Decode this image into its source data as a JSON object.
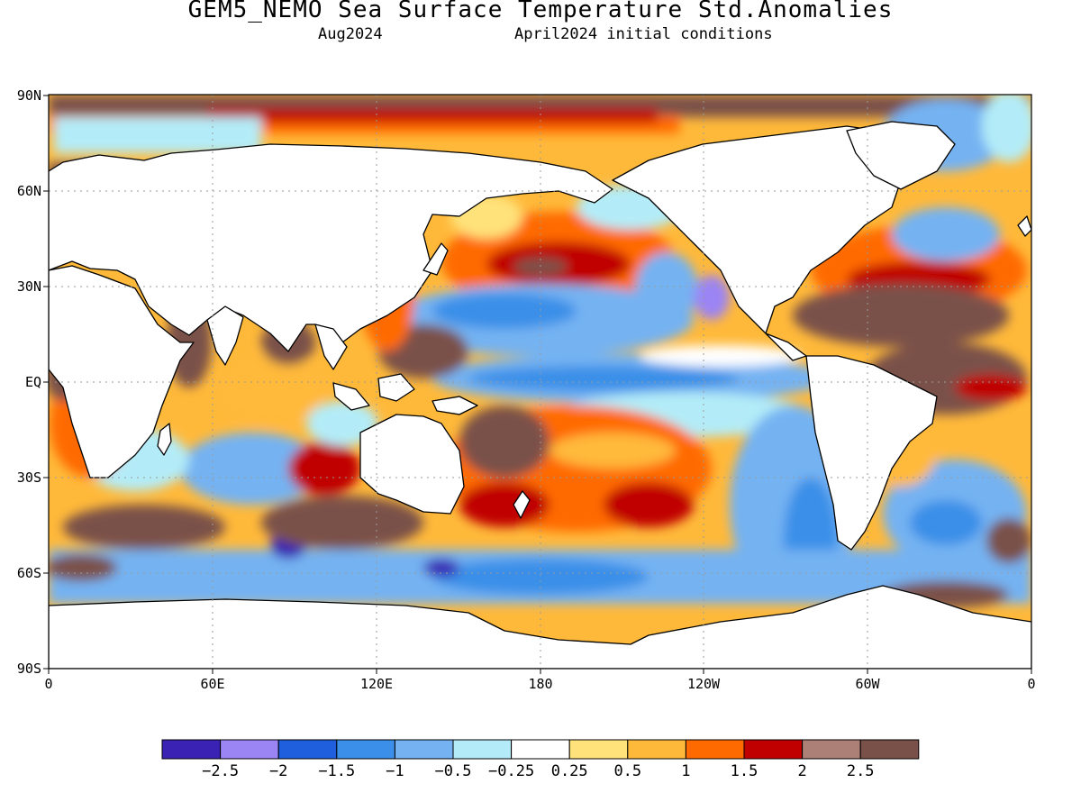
{
  "title": "GEM5_NEMO Sea Surface Temperature Std.Anomalies",
  "subtitle_left": "Aug2024",
  "subtitle_right": "April2024 initial conditions",
  "lat_labels": [
    "90N",
    "60N",
    "30N",
    "EQ",
    "30S",
    "60S",
    "90S"
  ],
  "lon_labels": [
    "0",
    "60E",
    "120E",
    "180",
    "120W",
    "60W",
    "0"
  ],
  "colorbar": {
    "colors": [
      "#3a22b4",
      "#9b84f4",
      "#1f5fdd",
      "#3b8fe8",
      "#74b2f2",
      "#b3ecf8",
      "#ffffff",
      "#ffe27a",
      "#ffb93a",
      "#ff6a00",
      "#c00000",
      "#ac7f77",
      "#7a5148"
    ],
    "labels": [
      "−2.5",
      "−2",
      "−1.5",
      "−1",
      "−0.5",
      "−0.25",
      "0.25",
      "0.5",
      "1",
      "1.5",
      "2",
      "2.5"
    ]
  }
}
